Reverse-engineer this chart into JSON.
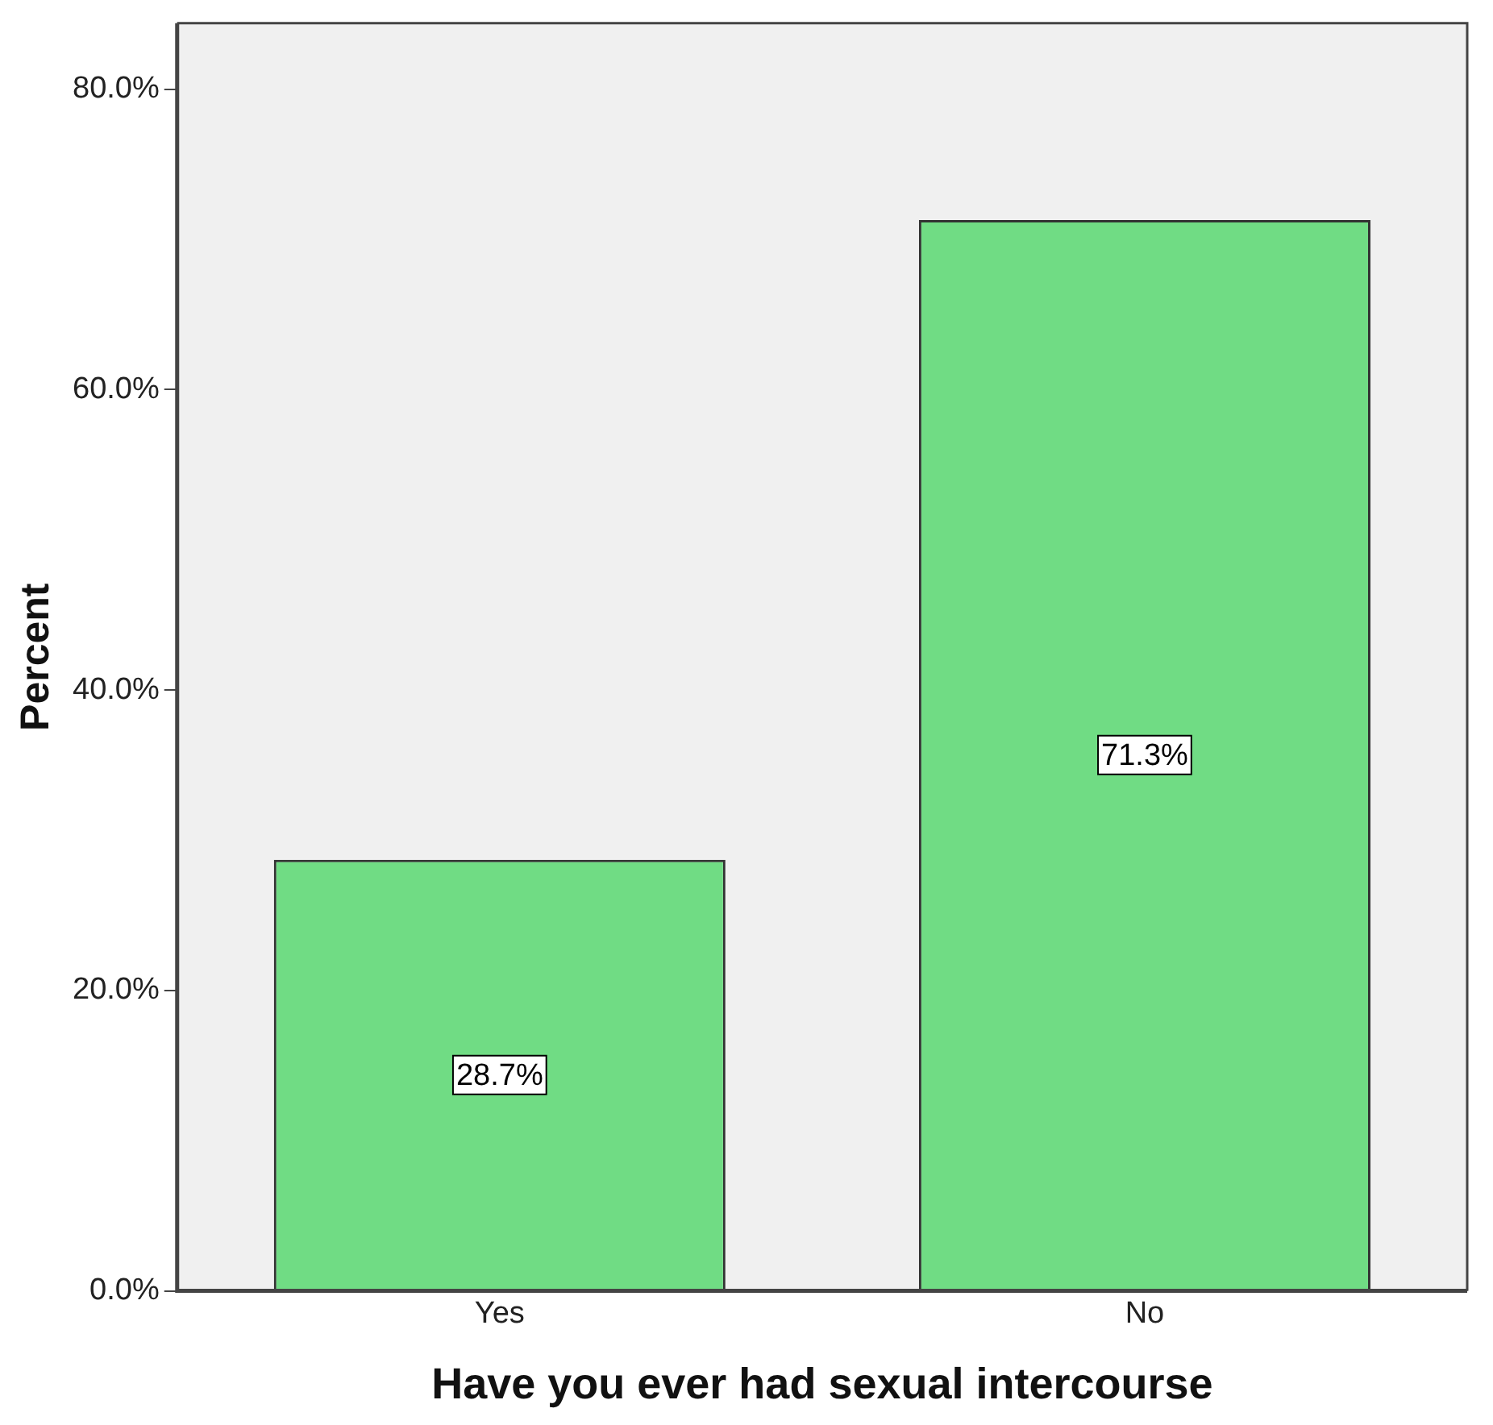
{
  "chart_data": {
    "type": "bar",
    "xlabel": "Have you ever had sexual intercourse",
    "ylabel": "Percent",
    "categories": [
      "Yes",
      "No"
    ],
    "values": [
      28.7,
      71.3
    ],
    "value_labels": [
      "28.7%",
      "71.3%"
    ],
    "color": "#70dc84",
    "ylim": [
      0,
      84.4
    ],
    "yticks": [
      {
        "value": 0,
        "label": "0.0%"
      },
      {
        "value": 20,
        "label": "20.0%"
      },
      {
        "value": 40,
        "label": "40.0%"
      },
      {
        "value": 60,
        "label": "60.0%"
      },
      {
        "value": 80,
        "label": "80.0%"
      }
    ],
    "grid": false,
    "legend": false
  }
}
